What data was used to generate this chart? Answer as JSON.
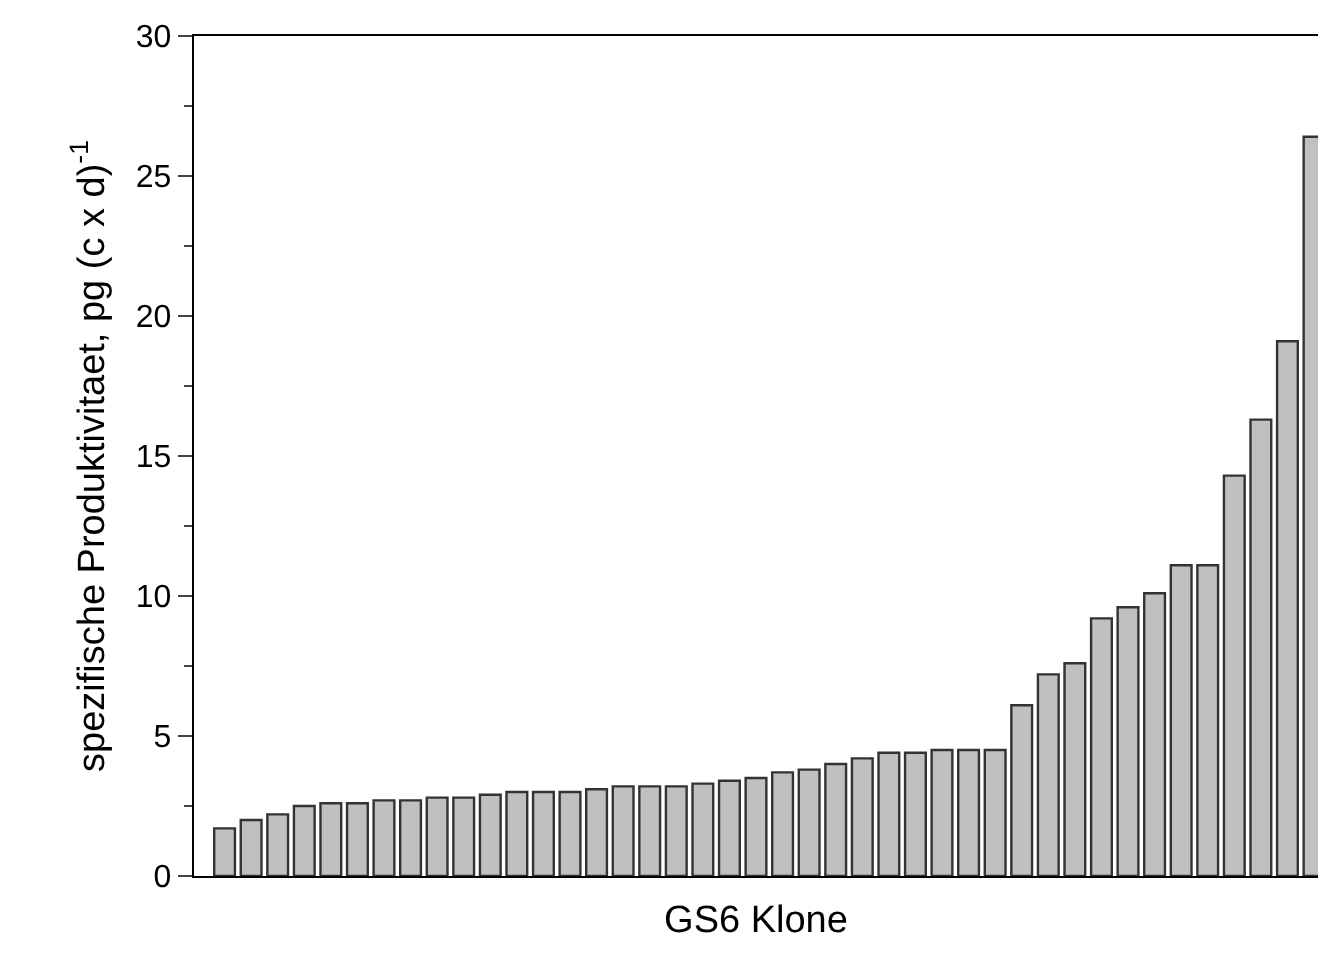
{
  "chart_data": {
    "type": "bar",
    "xlabel": "GS6 Klone",
    "ylabel": "spezifische Produktivitaet, pg (c x d)$^{-1}$",
    "categories": [
      null,
      null,
      null,
      null,
      null,
      null,
      null,
      null,
      null,
      null,
      null,
      null,
      null,
      null,
      null,
      null,
      null,
      null,
      null,
      null,
      null,
      null,
      null,
      null,
      null,
      null,
      null,
      null,
      null,
      null,
      null,
      null,
      null,
      null,
      null,
      null,
      null,
      null,
      null,
      null,
      null,
      null
    ],
    "values": [
      1.7,
      2.0,
      2.2,
      2.5,
      2.6,
      2.6,
      2.7,
      2.7,
      2.8,
      2.8,
      2.9,
      3.0,
      3.0,
      3.0,
      3.1,
      3.2,
      3.2,
      3.2,
      3.3,
      3.4,
      3.5,
      3.7,
      3.8,
      4.0,
      4.2,
      4.4,
      4.4,
      4.5,
      4.5,
      4.5,
      6.1,
      7.2,
      7.6,
      9.2,
      9.6,
      10.1,
      11.1,
      11.1,
      14.3,
      16.3,
      19.1,
      26.4
    ],
    "color": "#c0c0c0",
    "ylim": [
      0,
      30
    ],
    "yticks": [
      0,
      5,
      10,
      15,
      20,
      25,
      30
    ],
    "grid": false
  }
}
